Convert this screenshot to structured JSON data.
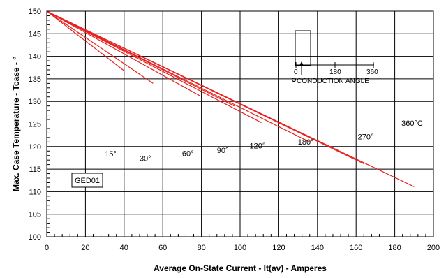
{
  "chart_data": {
    "type": "line",
    "title": "",
    "xlabel": "Average On-State Current - It(av) - Amperes",
    "ylabel": "Max. Case Temperature - Tcase - °",
    "xlim": [
      0,
      200
    ],
    "ylim": [
      100,
      150
    ],
    "x_ticks": [
      "0",
      "20",
      "40",
      "60",
      "80",
      "100",
      "120",
      "140",
      "160",
      "180",
      "200"
    ],
    "y_ticks": [
      "100",
      "105",
      "110",
      "115",
      "120",
      "125",
      "130",
      "135",
      "140",
      "145",
      "150"
    ],
    "grid": true,
    "series": [
      {
        "name": "15°",
        "label_at": [
          33,
          117.8
        ],
        "x": [
          0,
          40
        ],
        "y": [
          150,
          136.8
        ]
      },
      {
        "name": "30°",
        "label_at": [
          51,
          116.8
        ],
        "x": [
          0,
          55
        ],
        "y": [
          150,
          134.0
        ]
      },
      {
        "name": "60°",
        "label_at": [
          73,
          117.9
        ],
        "x": [
          0,
          79
        ],
        "y": [
          150,
          131.3
        ]
      },
      {
        "name": "90°",
        "label_at": [
          91,
          118.6
        ],
        "x": [
          0,
          97
        ],
        "y": [
          150,
          129.0
        ]
      },
      {
        "name": "120°",
        "label_at": [
          109,
          119.6
        ],
        "x": [
          0,
          111
        ],
        "y": [
          150,
          125.3
        ]
      },
      {
        "name": "180°",
        "label_at": [
          134,
          120.4
        ],
        "x": [
          0,
          136
        ],
        "y": [
          150,
          121.0
        ]
      },
      {
        "name": "270°",
        "label_at": [
          165,
          121.6
        ],
        "x": [
          0,
          164
        ],
        "y": [
          150,
          116.2
        ]
      },
      {
        "name": "360°C",
        "label_at": [
          189,
          124.6
        ],
        "x": [
          0,
          190
        ],
        "y": [
          150,
          111.1
        ]
      }
    ],
    "annotations": {
      "box_label": "GED01",
      "inset": {
        "ticks": [
          "0",
          "180",
          "360"
        ],
        "caption": "CONDUCTION ANGLE"
      }
    },
    "colors": {
      "curves": "#e8201e",
      "grid": "#000000",
      "axes": "#000000"
    }
  }
}
